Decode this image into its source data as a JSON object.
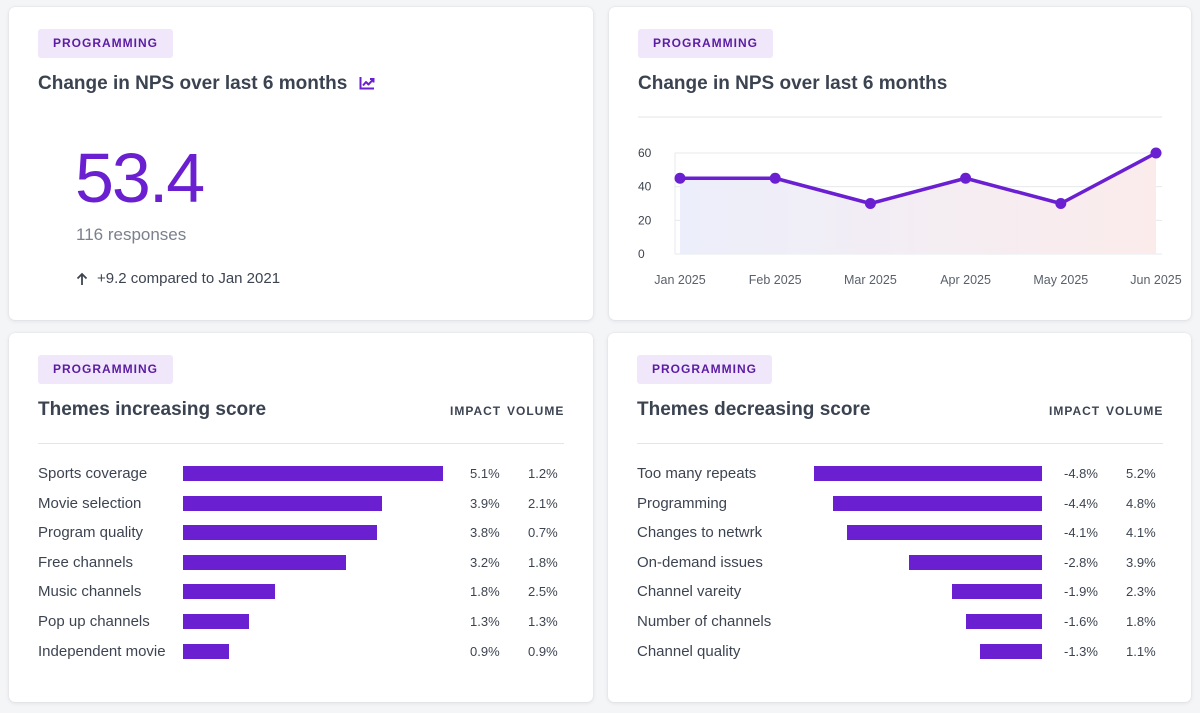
{
  "colors": {
    "accent": "#6a1fd1",
    "tag_bg": "#f0e7fa",
    "tag_text": "#5b1ca3"
  },
  "kpi_card": {
    "tag": "PROGRAMMING",
    "title": "Change in NPS over last 6 months",
    "title_icon": "trend-chart-icon",
    "value": "53.4",
    "responses": "116 responses",
    "delta_icon": "arrow-up-icon",
    "delta": "+9.2 compared to Jan 2021"
  },
  "line_card": {
    "tag": "PROGRAMMING",
    "title": "Change in NPS over last 6 months"
  },
  "increase_card": {
    "tag": "PROGRAMMING",
    "title": "Themes increasing score",
    "col_impact": "IMPACT",
    "col_volume": "VOLUME"
  },
  "decrease_card": {
    "tag": "PROGRAMMING",
    "title": "Themes decreasing score",
    "col_impact": "IMPACT",
    "col_volume": "VOLUME"
  },
  "chart_data": [
    {
      "type": "line",
      "title": "Change in NPS over last 6 months",
      "categories": [
        "Jan 2025",
        "Feb 2025",
        "Mar 2025",
        "Apr 2025",
        "May 2025",
        "Jun 2025"
      ],
      "values": [
        45,
        45,
        30,
        45,
        30,
        60
      ],
      "ylim": [
        0,
        60
      ],
      "yticks": [
        "0",
        "20",
        "40",
        "60"
      ],
      "grid": true
    },
    {
      "type": "bar",
      "title": "Themes increasing score",
      "categories": [
        "Sports coverage",
        "Movie selection",
        "Program quality",
        "Free channels",
        "Music channels",
        "Pop up channels",
        "Independent movie"
      ],
      "impact": [
        5.1,
        3.9,
        3.8,
        3.2,
        1.8,
        1.3,
        0.9
      ],
      "impact_labels": [
        "5.1%",
        "3.9%",
        "3.8%",
        "3.2%",
        "1.8%",
        "1.3%",
        "0.9%"
      ],
      "volume_labels": [
        "1.2%",
        "2.1%",
        "0.7%",
        "1.8%",
        "2.5%",
        "1.3%",
        "0.9%"
      ]
    },
    {
      "type": "bar",
      "title": "Themes decreasing score",
      "categories": [
        "Too many repeats",
        "Programming",
        "Changes to netwrk",
        "On-demand issues",
        "Channel vareity",
        "Number of channels",
        "Channel quality"
      ],
      "impact": [
        -4.8,
        -4.4,
        -4.1,
        -2.8,
        -1.9,
        -1.6,
        -1.3
      ],
      "impact_labels": [
        "-4.8%",
        "-4.4%",
        "-4.1%",
        "-2.8%",
        "-1.9%",
        "-1.6%",
        "-1.3%"
      ],
      "volume_labels": [
        "5.2%",
        "4.8%",
        "4.1%",
        "3.9%",
        "2.3%",
        "1.8%",
        "1.1%"
      ]
    }
  ]
}
